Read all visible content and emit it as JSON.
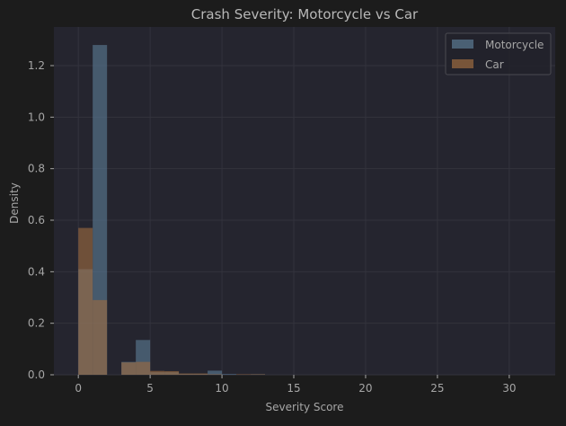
{
  "chart_data": {
    "type": "bar",
    "title": "Crash Severity: Motorcycle vs Car",
    "xlabel": "Severity Score",
    "ylabel": "Density",
    "xlim": [
      -1.7,
      33.2
    ],
    "ylim": [
      0,
      1.35
    ],
    "xticks": [
      0,
      5,
      10,
      15,
      20,
      25,
      30
    ],
    "yticks": [
      0.0,
      0.2,
      0.4,
      0.6,
      0.8,
      1.0,
      1.2
    ],
    "grid": true,
    "legend_position": "top-right",
    "bin_width": 1,
    "series": [
      {
        "name": "Motorcycle",
        "color": "#5b7b94",
        "bins": [
          {
            "x0": 0,
            "x1": 1,
            "value": 0.41
          },
          {
            "x0": 1,
            "x1": 2,
            "value": 1.28
          },
          {
            "x0": 3,
            "x1": 4,
            "value": 0.05
          },
          {
            "x0": 4,
            "x1": 5,
            "value": 0.135
          },
          {
            "x0": 5,
            "x1": 6,
            "value": 0.01
          },
          {
            "x0": 6,
            "x1": 7,
            "value": 0.01
          },
          {
            "x0": 7,
            "x1": 8,
            "value": 0.003
          },
          {
            "x0": 8,
            "x1": 9,
            "value": 0.003
          },
          {
            "x0": 9,
            "x1": 10,
            "value": 0.016
          },
          {
            "x0": 10,
            "x1": 11,
            "value": 0.003
          },
          {
            "x0": 12,
            "x1": 13,
            "value": 0.002
          }
        ]
      },
      {
        "name": "Car",
        "color": "#9c6b40",
        "bins": [
          {
            "x0": 0,
            "x1": 1,
            "value": 0.57
          },
          {
            "x0": 1,
            "x1": 2,
            "value": 0.29
          },
          {
            "x0": 3,
            "x1": 4,
            "value": 0.048
          },
          {
            "x0": 4,
            "x1": 5,
            "value": 0.05
          },
          {
            "x0": 5,
            "x1": 6,
            "value": 0.015
          },
          {
            "x0": 6,
            "x1": 7,
            "value": 0.014
          },
          {
            "x0": 7,
            "x1": 8,
            "value": 0.005
          },
          {
            "x0": 8,
            "x1": 9,
            "value": 0.005
          },
          {
            "x0": 9,
            "x1": 10,
            "value": 0.002
          },
          {
            "x0": 11,
            "x1": 12,
            "value": 0.002
          },
          {
            "x0": 12,
            "x1": 13,
            "value": 0.002
          }
        ]
      }
    ]
  },
  "colors": {
    "figure_bg": "#1c1c1c",
    "axes_bg": "#25252f",
    "grid": "#33333d",
    "text": "#a6a6a6",
    "title": "#b8b8b8",
    "legend_bg": "#22222a",
    "legend_border": "#4a4a50"
  }
}
